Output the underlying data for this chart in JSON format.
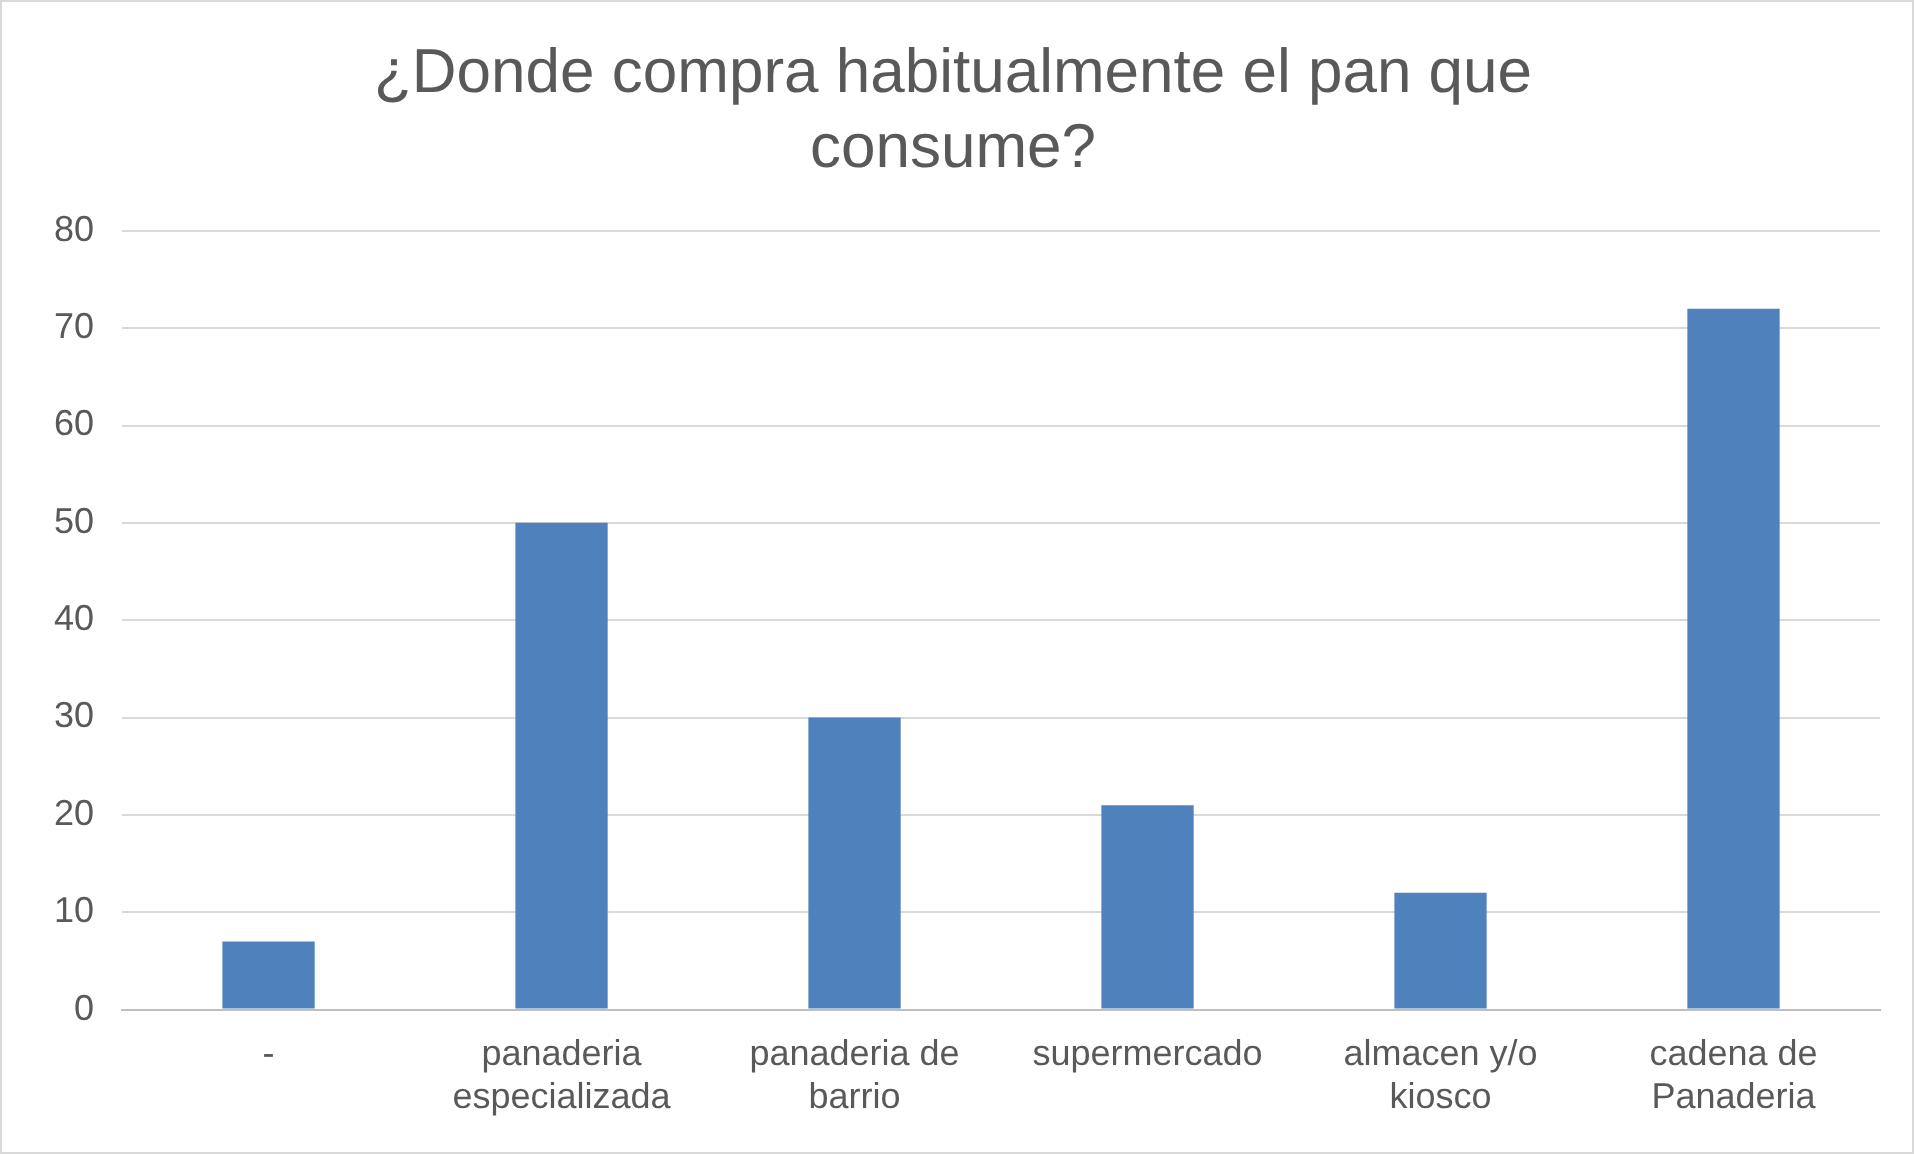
{
  "chart_data": {
    "type": "bar",
    "title": "¿Donde compra habitualmente el pan que consume?",
    "categories": [
      "-",
      "panaderia especializada",
      "panaderia de barrio",
      "supermercado",
      "almacen y/o kiosco",
      "cadena de Panaderia"
    ],
    "values": [
      7,
      50,
      30,
      21,
      12,
      72
    ],
    "color": "#4f81bd",
    "ylim": [
      0,
      80
    ],
    "yticks": [
      0,
      10,
      20,
      30,
      40,
      50,
      60,
      70,
      80
    ],
    "grid": "y",
    "legend": false
  }
}
